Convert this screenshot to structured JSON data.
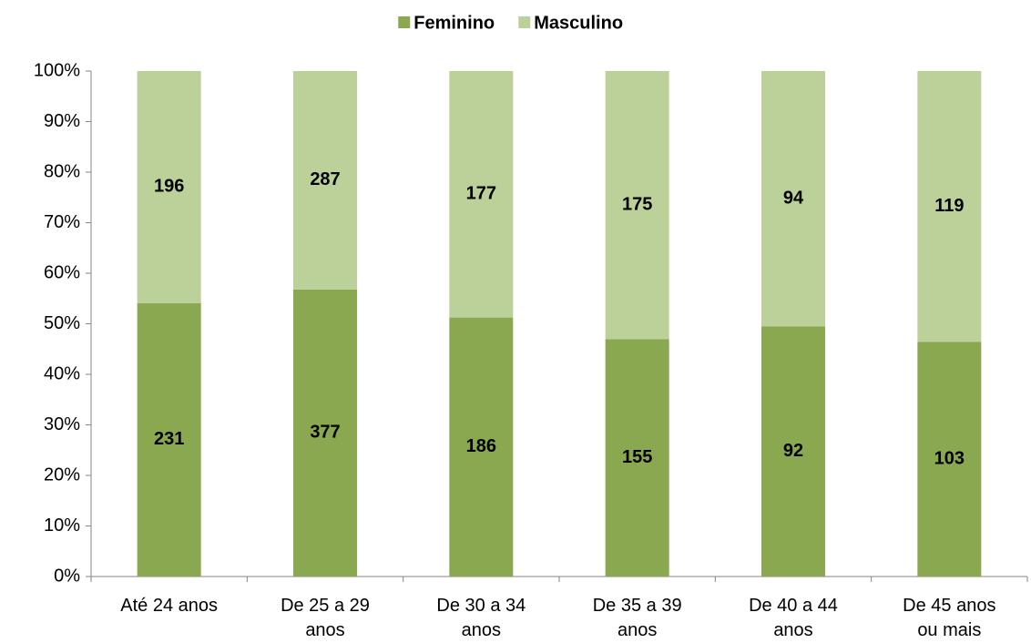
{
  "chart_data": {
    "type": "bar",
    "stacking": "percent",
    "categories": [
      "Até 24 anos",
      "De 25 a 29\nanos",
      "De 30 a 34\nanos",
      "De 35 a 39\nanos",
      "De 40 a 44\nanos",
      "De 45 anos\nou mais"
    ],
    "series": [
      {
        "name": "Feminino",
        "color": "#8aa84f",
        "values": [
          231,
          377,
          186,
          155,
          92,
          103
        ]
      },
      {
        "name": "Masculino",
        "color": "#bcd09a",
        "values": [
          196,
          287,
          177,
          175,
          94,
          119
        ]
      }
    ],
    "ylim": [
      0,
      100
    ],
    "yticks": [
      {
        "value": 0,
        "label": "0%"
      },
      {
        "value": 10,
        "label": "10%"
      },
      {
        "value": 20,
        "label": "20%"
      },
      {
        "value": 30,
        "label": "30%"
      },
      {
        "value": 40,
        "label": "40%"
      },
      {
        "value": 50,
        "label": "50%"
      },
      {
        "value": 60,
        "label": "60%"
      },
      {
        "value": 70,
        "label": "70%"
      },
      {
        "value": 80,
        "label": "80%"
      },
      {
        "value": 90,
        "label": "90%"
      },
      {
        "value": 100,
        "label": "100%"
      }
    ],
    "legend": "top",
    "grid": false
  }
}
